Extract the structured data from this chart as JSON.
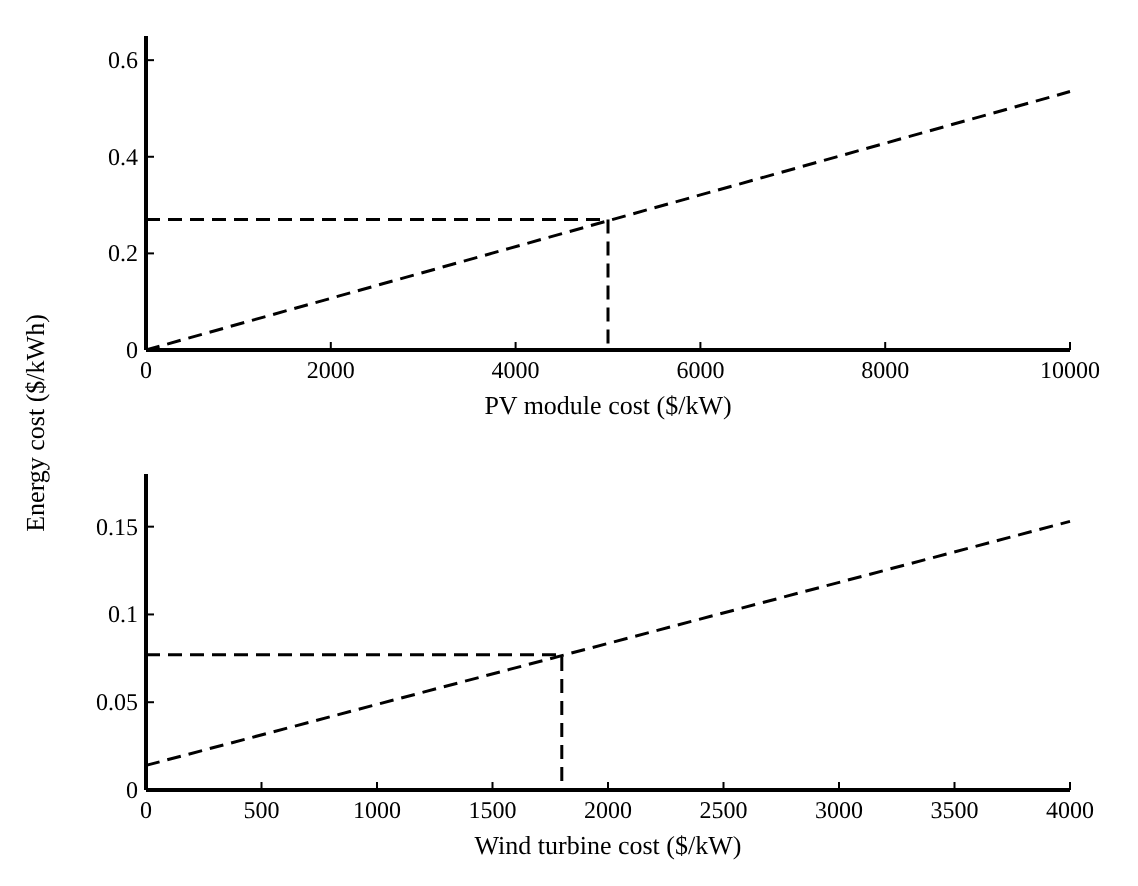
{
  "chart_data": [
    {
      "type": "line",
      "xlabel": "PV module cost ($/kW)",
      "ylabel": "Energy cost ($/kWh)",
      "xlim": [
        0,
        10000
      ],
      "xticks": [
        0,
        2000,
        4000,
        6000,
        8000,
        10000
      ],
      "ylim": [
        0,
        0.65
      ],
      "yticks": [
        0,
        0.2,
        0.4,
        0.6
      ],
      "line_style": "dashed",
      "grid": false,
      "series": [
        {
          "color": "#000000",
          "x": [
            0,
            10000
          ],
          "values": [
            0,
            0.535
          ]
        },
        {
          "color": "#000000",
          "x": [
            0,
            5000,
            5000
          ],
          "values": [
            0.27,
            0.27,
            0
          ]
        }
      ]
    },
    {
      "type": "line",
      "xlabel": "Wind turbine cost ($/kW)",
      "xlim": [
        0,
        4000
      ],
      "xticks": [
        0,
        500,
        1000,
        1500,
        2000,
        2500,
        3000,
        3500,
        4000
      ],
      "ylim": [
        0,
        0.18
      ],
      "yticks": [
        0,
        0.05,
        0.1,
        0.15
      ],
      "line_style": "dashed",
      "grid": false,
      "series": [
        {
          "color": "#000000",
          "x": [
            0,
            4000
          ],
          "values": [
            0.014,
            0.153
          ]
        },
        {
          "color": "#000000",
          "x": [
            0,
            1800,
            1800
          ],
          "values": [
            0.077,
            0.077,
            0
          ]
        }
      ]
    }
  ]
}
